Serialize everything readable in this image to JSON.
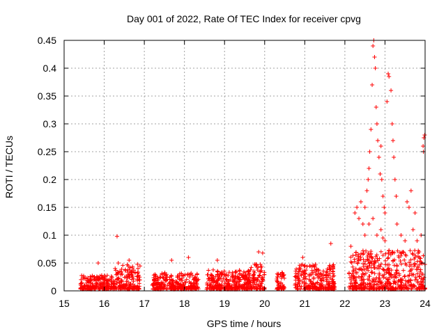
{
  "chart_data": {
    "type": "scatter",
    "title": "Day 001 of 2022, Rate Of TEC Index for receiver cpvg",
    "xlabel": "GPS time / hours",
    "ylabel": "ROTI / TECUs",
    "xlim": [
      15,
      24
    ],
    "ylim": [
      0,
      0.45
    ],
    "xticks": [
      "15",
      "16",
      "17",
      "18",
      "19",
      "20",
      "21",
      "22",
      "23",
      "24"
    ],
    "yticks": [
      "0",
      "0.05",
      "0.1",
      "0.15",
      "0.2",
      "0.25",
      "0.3",
      "0.35",
      "0.4",
      "0.45"
    ],
    "grid": true,
    "marker": "+",
    "series_color": "#ff0000",
    "clusters": [
      {
        "x_range": [
          15.4,
          16.25
        ],
        "y_base": 0.0,
        "y_spread": 0.025
      },
      {
        "x_range": [
          16.25,
          16.9
        ],
        "y_base": 0.0,
        "y_spread": 0.045
      },
      {
        "x_range": [
          17.2,
          18.35
        ],
        "y_base": 0.0,
        "y_spread": 0.03
      },
      {
        "x_range": [
          18.55,
          19.55
        ],
        "y_base": 0.0,
        "y_spread": 0.035
      },
      {
        "x_range": [
          19.55,
          20.0
        ],
        "y_base": 0.0,
        "y_spread": 0.045
      },
      {
        "x_range": [
          20.3,
          20.5
        ],
        "y_base": 0.0,
        "y_spread": 0.03
      },
      {
        "x_range": [
          20.75,
          21.75
        ],
        "y_base": 0.0,
        "y_spread": 0.045
      },
      {
        "x_range": [
          22.1,
          24.0
        ],
        "y_base": 0.0,
        "y_spread": 0.07
      }
    ],
    "points": [
      [
        15.85,
        0.05
      ],
      [
        16.32,
        0.098
      ],
      [
        16.35,
        0.05
      ],
      [
        16.62,
        0.055
      ],
      [
        17.68,
        0.055
      ],
      [
        18.1,
        0.06
      ],
      [
        18.82,
        0.055
      ],
      [
        19.85,
        0.07
      ],
      [
        19.95,
        0.068
      ],
      [
        21.65,
        0.085
      ],
      [
        20.95,
        0.06
      ],
      [
        22.25,
        0.14
      ],
      [
        22.3,
        0.15
      ],
      [
        22.35,
        0.13
      ],
      [
        22.4,
        0.16
      ],
      [
        22.45,
        0.12
      ],
      [
        22.5,
        0.15
      ],
      [
        22.55,
        0.18
      ],
      [
        22.58,
        0.2
      ],
      [
        22.6,
        0.22
      ],
      [
        22.62,
        0.25
      ],
      [
        22.65,
        0.29
      ],
      [
        22.68,
        0.37
      ],
      [
        22.7,
        0.44
      ],
      [
        22.72,
        0.45
      ],
      [
        22.74,
        0.42
      ],
      [
        22.76,
        0.4
      ],
      [
        22.78,
        0.33
      ],
      [
        22.8,
        0.3
      ],
      [
        22.82,
        0.27
      ],
      [
        22.85,
        0.24
      ],
      [
        22.88,
        0.21
      ],
      [
        22.9,
        0.26
      ],
      [
        22.92,
        0.2
      ],
      [
        22.95,
        0.17
      ],
      [
        22.98,
        0.15
      ],
      [
        23.0,
        0.14
      ],
      [
        23.05,
        0.34
      ],
      [
        23.08,
        0.39
      ],
      [
        23.1,
        0.385
      ],
      [
        23.15,
        0.36
      ],
      [
        23.18,
        0.3
      ],
      [
        23.2,
        0.27
      ],
      [
        23.22,
        0.24
      ],
      [
        23.25,
        0.2
      ],
      [
        23.28,
        0.17
      ],
      [
        23.3,
        0.12
      ],
      [
        23.4,
        0.1
      ],
      [
        23.5,
        0.09
      ],
      [
        23.55,
        0.16
      ],
      [
        23.6,
        0.15
      ],
      [
        23.65,
        0.18
      ],
      [
        23.7,
        0.11
      ],
      [
        23.75,
        0.14
      ],
      [
        23.8,
        0.09
      ],
      [
        23.85,
        0.07
      ],
      [
        23.9,
        0.1
      ],
      [
        23.95,
        0.26
      ],
      [
        23.97,
        0.275
      ],
      [
        23.99,
        0.28
      ],
      [
        23.96,
        0.25
      ],
      [
        22.9,
        0.11
      ],
      [
        22.95,
        0.095
      ],
      [
        23.0,
        0.09
      ],
      [
        22.5,
        0.1
      ],
      [
        22.6,
        0.12
      ],
      [
        22.7,
        0.13
      ],
      [
        22.8,
        0.1
      ],
      [
        23.35,
        0.06
      ],
      [
        23.45,
        0.07
      ],
      [
        22.15,
        0.08
      ]
    ]
  }
}
